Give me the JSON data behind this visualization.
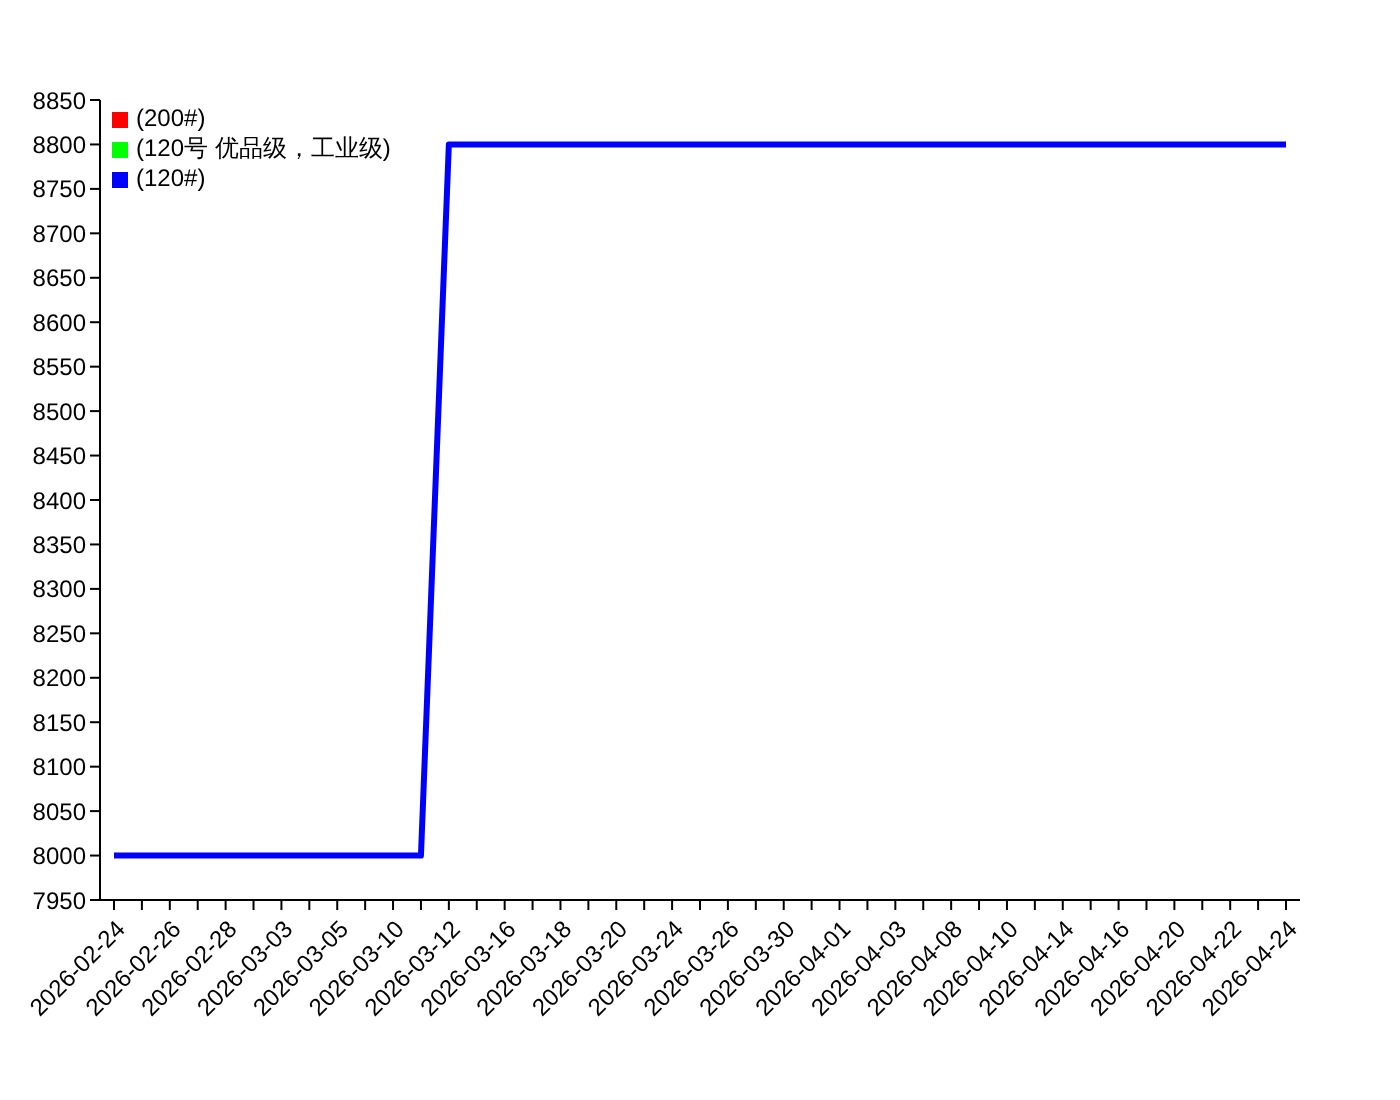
{
  "chart_data": {
    "type": "line",
    "categories": [
      "2026-02-24",
      null,
      "2026-02-26",
      null,
      "2026-02-28",
      null,
      "2026-03-03",
      null,
      "2026-03-05",
      null,
      "2026-03-10",
      null,
      "2026-03-12",
      null,
      "2026-03-16",
      null,
      "2026-03-18",
      null,
      "2026-03-20",
      null,
      "2026-03-24",
      null,
      "2026-03-26",
      null,
      "2026-03-30",
      null,
      "2026-04-01",
      null,
      "2026-04-03",
      null,
      "2026-04-08",
      null,
      "2026-04-10",
      null,
      "2026-04-14",
      null,
      "2026-04-16",
      null,
      "2026-04-20",
      null,
      "2026-04-22",
      null,
      "2026-04-24"
    ],
    "series": [
      {
        "name": "(200#)",
        "color": "#ff0000",
        "values": [
          null,
          null,
          null,
          null,
          null,
          null,
          null,
          null,
          null,
          null,
          null,
          null,
          null,
          null,
          null,
          null,
          null,
          null,
          null,
          null,
          null,
          null,
          null,
          null,
          null,
          null,
          null,
          null,
          null,
          null,
          null,
          null,
          null,
          null,
          null,
          null,
          null,
          null,
          null,
          null,
          null,
          null,
          null
        ]
      },
      {
        "name": "(120号 优品级，工业级)",
        "color": "#00ff00",
        "values": [
          null,
          null,
          null,
          null,
          null,
          null,
          null,
          null,
          null,
          null,
          null,
          null,
          null,
          null,
          null,
          null,
          null,
          null,
          null,
          null,
          null,
          null,
          null,
          null,
          null,
          null,
          null,
          null,
          null,
          null,
          null,
          null,
          null,
          null,
          null,
          null,
          null,
          null,
          null,
          null,
          null,
          null,
          null
        ]
      },
      {
        "name": "(120#)",
        "color": "#0000ff",
        "values": [
          8000,
          8000,
          8000,
          8000,
          8000,
          8000,
          8000,
          8000,
          8000,
          8000,
          8000,
          8000,
          8800,
          8800,
          8800,
          8800,
          8800,
          8800,
          8800,
          8800,
          8800,
          8800,
          8800,
          8800,
          8800,
          8800,
          8800,
          8800,
          8800,
          8800,
          8800,
          8800,
          8800,
          8800,
          8800,
          8800,
          8800,
          8800,
          8800,
          8800,
          8800,
          8800,
          8800
        ]
      }
    ],
    "ylim": [
      7950,
      8850
    ],
    "yticks": [
      7950,
      8000,
      8050,
      8100,
      8150,
      8200,
      8250,
      8300,
      8350,
      8400,
      8450,
      8500,
      8550,
      8600,
      8650,
      8700,
      8750,
      8800,
      8850
    ],
    "grid": false,
    "legend": "top left"
  }
}
